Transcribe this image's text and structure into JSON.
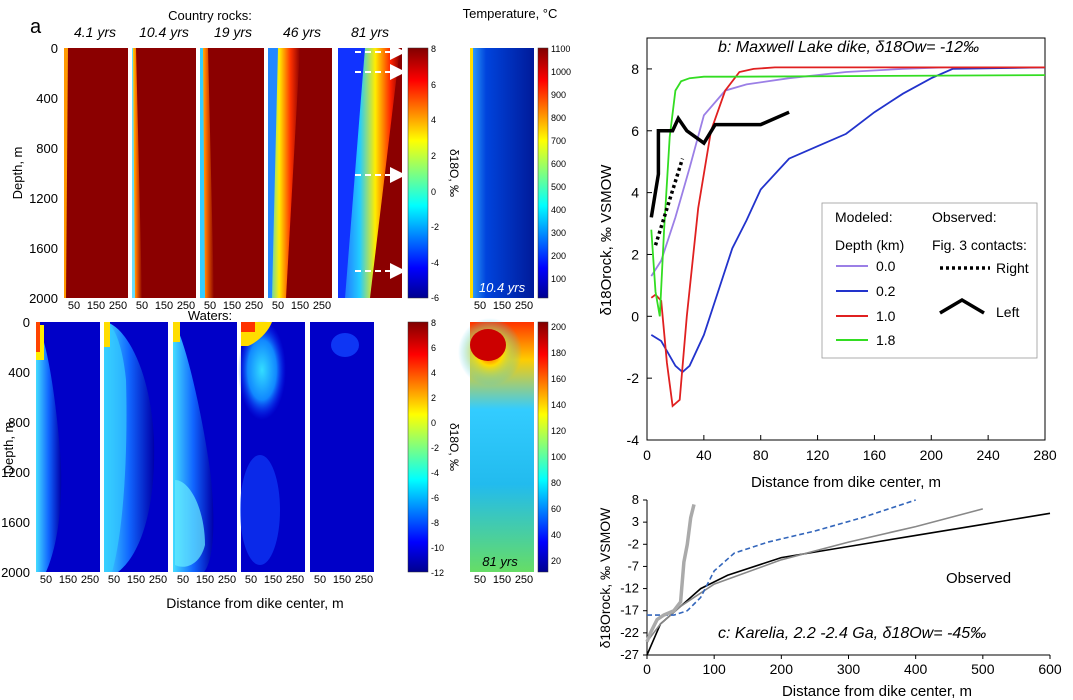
{
  "panel_a": {
    "letter": "a",
    "rocks_title": "Country rocks:",
    "waters_title": "Waters:",
    "times": [
      "4.1 yrs",
      "10.4 yrs",
      "19 yrs",
      "46 yrs",
      "81 yrs"
    ],
    "depth_label": "Depth, m",
    "depth_ticks": [
      "0",
      "400",
      "800",
      "1200",
      "1600",
      "2000"
    ],
    "x_ticks": [
      "50",
      "150",
      "250"
    ],
    "xlabel": "Distance from dike center,  m",
    "rock_cbar_label": "δ18O, ‰",
    "rock_cbar_ticks": [
      "8",
      "6",
      "4",
      "2",
      "0",
      "-2",
      "-4",
      "-6"
    ],
    "water_cbar_label": "δ18O, ‰",
    "water_cbar_ticks": [
      "8",
      "6",
      "4",
      "2",
      "0",
      "-2",
      "-4",
      "-6",
      "-8",
      "-10",
      "-12"
    ],
    "temp_title": "Temperature, °C",
    "temp_top_ticks": [
      "1100",
      "1000",
      "900",
      "800",
      "700",
      "600",
      "500",
      "400",
      "300",
      "200",
      "100"
    ],
    "temp_top_time": "10.4 yrs",
    "temp_bottom_ticks": [
      "200",
      "180",
      "160",
      "140",
      "120",
      "100",
      "80",
      "60",
      "40",
      "20"
    ],
    "temp_bottom_time": "81 yrs"
  },
  "chart_data": [
    {
      "type": "line",
      "panel": "b",
      "title": "b: Maxwell Lake dike, δ18Ow= -12‰",
      "xlabel": "Distance from dike center, m",
      "ylabel": "δ18Orock, ‰ VSMOW",
      "xlim": [
        0,
        280
      ],
      "ylim": [
        -4,
        9
      ],
      "xticks": [
        "0",
        "40",
        "80",
        "120",
        "160",
        "200",
        "240",
        "280"
      ],
      "yticks": [
        "-4",
        "-2",
        "0",
        "2",
        "4",
        "6",
        "8"
      ],
      "legend": {
        "modeled_title": "Modeled:",
        "depth_title": "Depth (km)",
        "observed_title": "Observed:",
        "contacts_title": "Fig. 3 contacts:",
        "right_label": "Right",
        "left_label": "Left"
      },
      "series": [
        {
          "name": "0.0",
          "color": "#9b7fe6",
          "x": [
            3,
            10,
            20,
            30,
            40,
            55,
            70,
            100,
            140,
            180,
            210,
            280
          ],
          "y": [
            1.3,
            1.8,
            3.2,
            4.8,
            6.5,
            7.3,
            7.5,
            7.7,
            7.9,
            8.0,
            8.05,
            8.05
          ]
        },
        {
          "name": "0.2",
          "color": "#2233cc",
          "x": [
            3,
            10,
            20,
            25,
            30,
            40,
            50,
            60,
            70,
            80,
            100,
            120,
            140,
            160,
            180,
            200,
            215,
            280
          ],
          "y": [
            -0.6,
            -0.8,
            -1.6,
            -1.8,
            -1.6,
            -0.6,
            0.8,
            2.2,
            3.1,
            4.1,
            5.1,
            5.5,
            5.9,
            6.6,
            7.2,
            7.7,
            8.0,
            8.05
          ]
        },
        {
          "name": "1.0",
          "color": "#e02020",
          "x": [
            3,
            6,
            10,
            14,
            18,
            23,
            28,
            36,
            45,
            55,
            65,
            75,
            90,
            280
          ],
          "y": [
            0.6,
            0.7,
            0.5,
            -1.5,
            -2.9,
            -2.7,
            0.0,
            3.5,
            6.0,
            7.3,
            7.9,
            8.0,
            8.05,
            8.05
          ]
        },
        {
          "name": "1.8",
          "color": "#33dd22",
          "x": [
            3,
            6,
            9,
            12,
            16,
            20,
            24,
            30,
            40,
            60,
            280
          ],
          "y": [
            2.8,
            0.8,
            0.0,
            2.8,
            5.8,
            7.3,
            7.6,
            7.7,
            7.75,
            7.75,
            7.8
          ]
        }
      ],
      "observed": [
        {
          "name": "Right",
          "style": "dotted",
          "x": [
            6,
            25
          ],
          "y": [
            2.3,
            5.1
          ]
        },
        {
          "name": "Left",
          "style": "solid",
          "x": [
            3,
            8,
            8,
            12,
            18,
            22,
            28,
            40,
            48,
            60,
            80,
            100
          ],
          "y": [
            3.2,
            4.6,
            6.0,
            6.0,
            6.0,
            6.4,
            6.0,
            5.6,
            6.2,
            6.2,
            6.2,
            6.6
          ]
        }
      ]
    },
    {
      "type": "line",
      "panel": "c",
      "title": "c: Karelia, 2.2 -2.4 Ga, δ18Ow= -45‰",
      "annotation": "Observed",
      "xlabel": "Distance from dike center, m",
      "ylabel": "δ18Orock, ‰ VSMOW",
      "xlim": [
        0,
        600
      ],
      "ylim": [
        -27,
        8
      ],
      "xticks": [
        "0",
        "100",
        "200",
        "300",
        "400",
        "500",
        "600"
      ],
      "yticks": [
        "8",
        "3",
        "-2",
        "-7",
        "-12",
        "-17",
        "-22",
        "-27"
      ],
      "series": [
        {
          "color": "#000000",
          "style": "solid",
          "x": [
            0,
            20,
            50,
            80,
            120,
            200,
            300,
            400,
            500,
            600
          ],
          "y": [
            -27,
            -20,
            -16,
            -12,
            -9,
            -5,
            -2.5,
            0,
            2.5,
            5
          ]
        },
        {
          "color": "#888888",
          "style": "solid",
          "x": [
            0,
            20,
            50,
            100,
            200,
            300,
            400,
            500
          ],
          "y": [
            -24,
            -20,
            -16,
            -11,
            -5.5,
            -1.5,
            2,
            6
          ]
        },
        {
          "color": "#3366bb",
          "style": "dashed",
          "x": [
            0,
            40,
            60,
            80,
            100,
            130,
            180,
            250,
            320,
            400
          ],
          "y": [
            -18,
            -18,
            -17,
            -14,
            -8,
            -4,
            -1.5,
            1,
            4,
            8
          ]
        },
        {
          "color": "#aaaaaa",
          "style": "solid",
          "x": [
            0,
            5,
            15,
            25,
            40,
            50,
            55,
            60,
            65,
            70
          ],
          "y": [
            -24,
            -22,
            -19,
            -18,
            -17,
            -15,
            -6,
            -2,
            4,
            7
          ]
        }
      ]
    }
  ]
}
